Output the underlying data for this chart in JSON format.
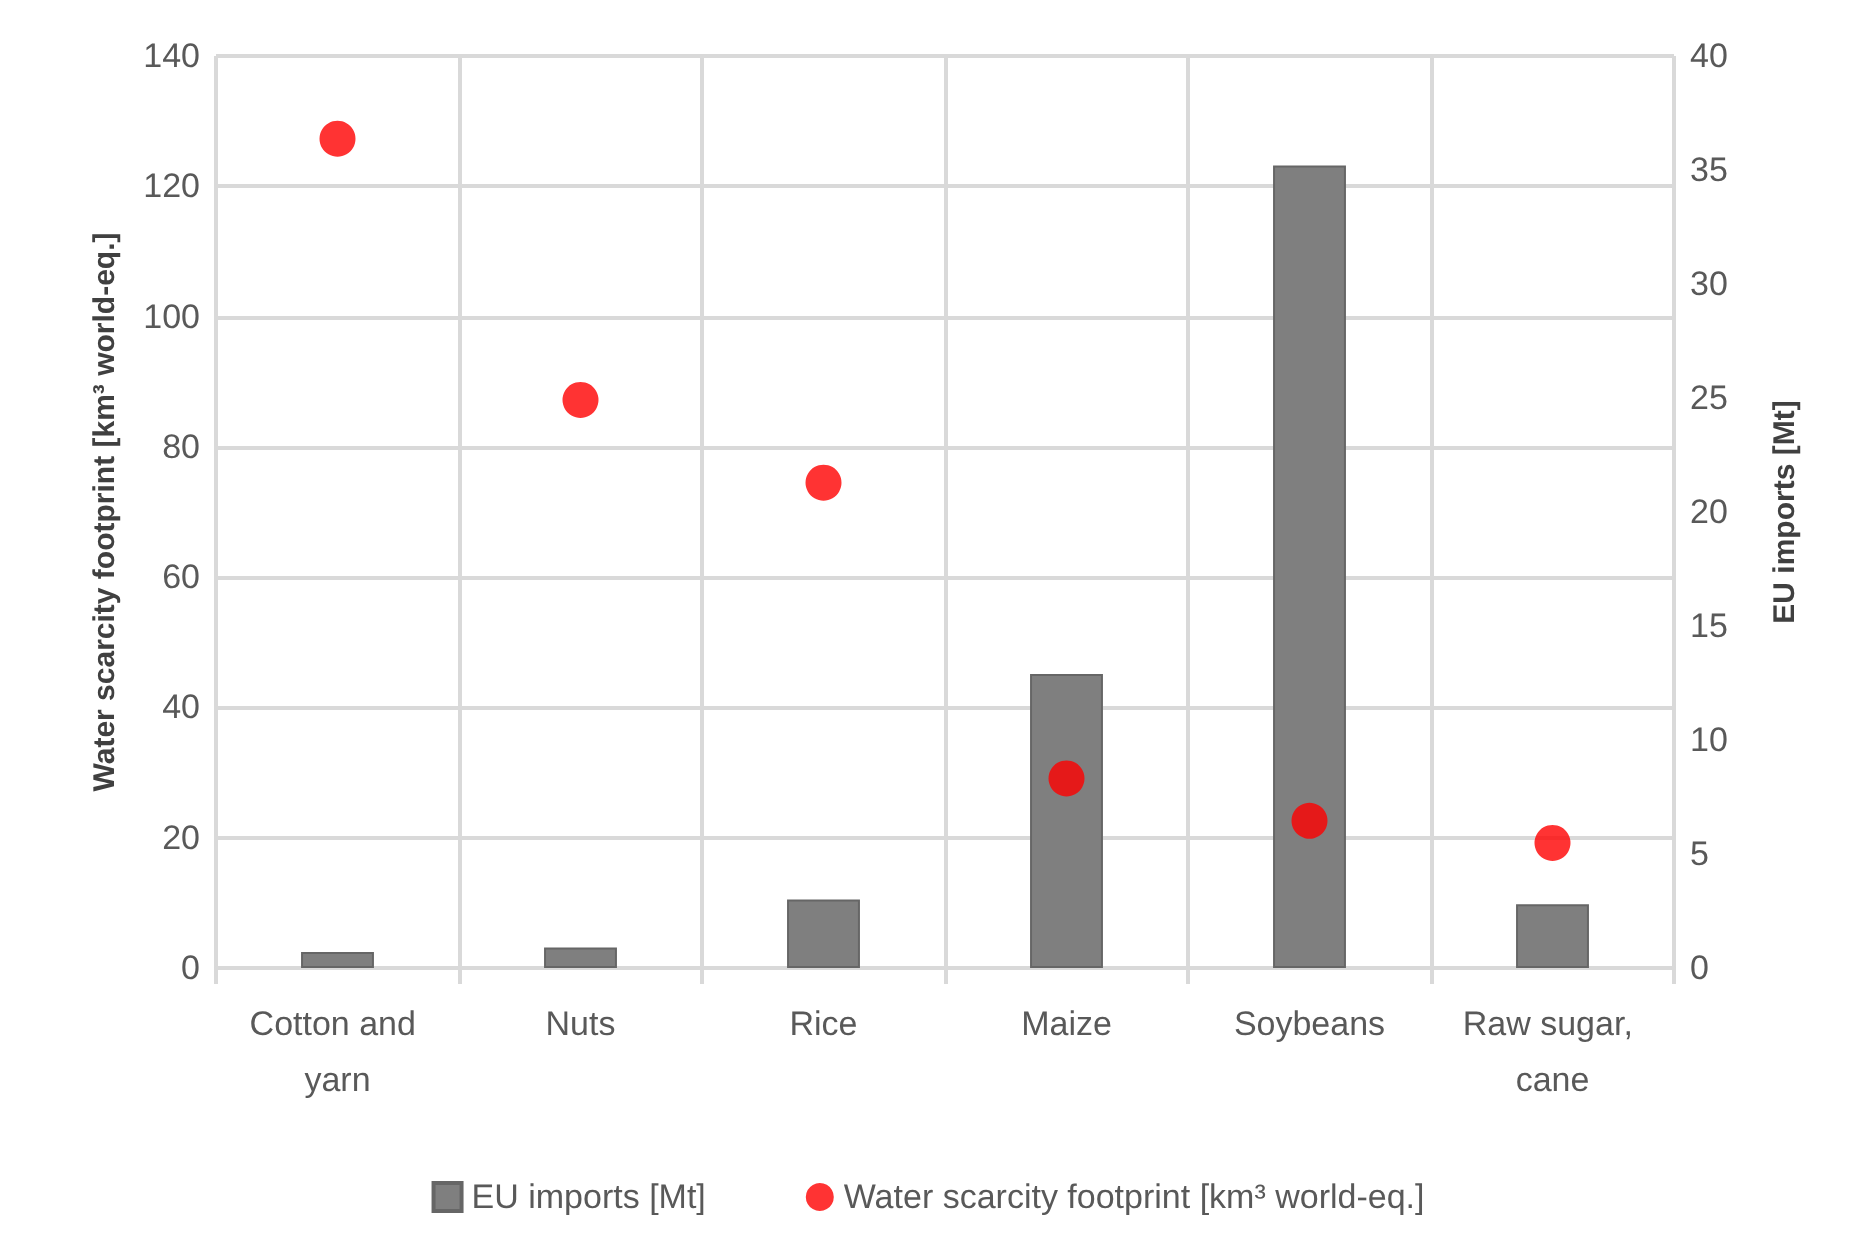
{
  "chart_data": {
    "type": "bar",
    "categories": [
      "Cotton and yarn",
      "Nuts",
      "Rice",
      "Maize",
      "Soybeans",
      "Raw sugar, cane"
    ],
    "series": [
      {
        "name": "EU imports [Mt]",
        "axis": "y2",
        "color": "#7f7f7f",
        "values": [
          0.7,
          0.9,
          3.0,
          12.9,
          35.2,
          2.8
        ]
      },
      {
        "name": "Water scarcity footprint [km³ world-eq.]",
        "type": "scatter",
        "color": "#ff0000",
        "values": [
          127.3,
          87.2,
          74.5,
          29.1,
          22.6,
          19.2
        ]
      }
    ],
    "ylabel": "Water scarcity footprint [km³ world-eq.]",
    "y2label": "EU imports [Mt]",
    "ylim": [
      0,
      140
    ],
    "yticks": [
      0,
      20,
      40,
      60,
      80,
      100,
      120,
      140
    ],
    "y2lim": [
      0,
      40
    ],
    "y2ticks": [
      0,
      5,
      10,
      15,
      20,
      25,
      30,
      35,
      40
    ],
    "grid": true,
    "legend": "bottom",
    "marker": "circle"
  }
}
